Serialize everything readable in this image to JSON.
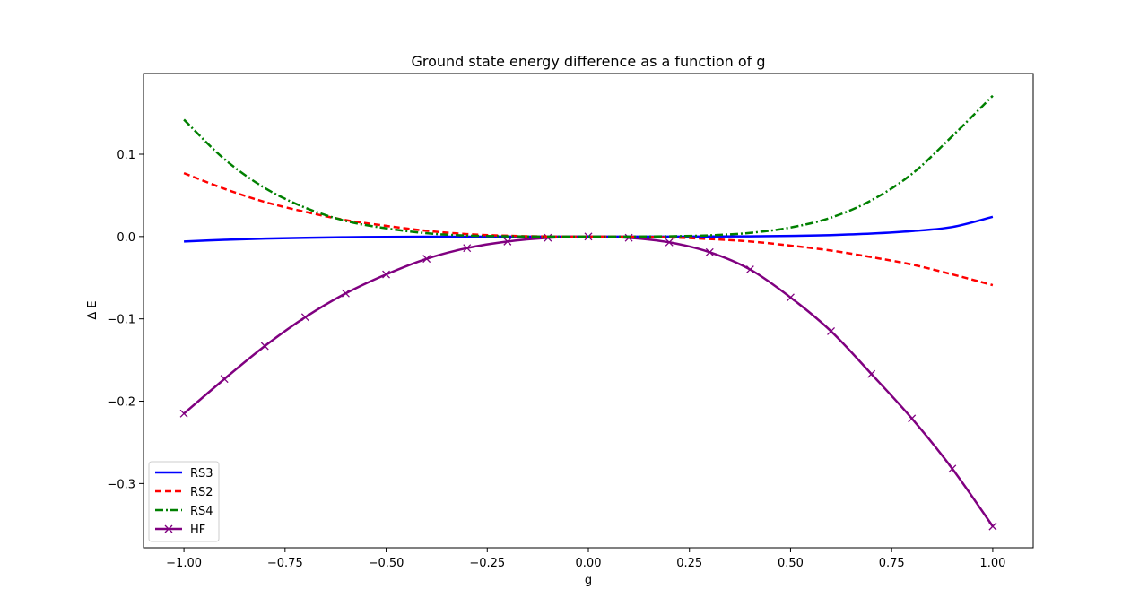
{
  "chart_data": {
    "type": "line",
    "title": "Ground state energy difference as a function of g",
    "xlabel": "g",
    "ylabel": "Δ E",
    "xlim": [
      -1.1,
      1.1
    ],
    "ylim": [
      -0.378,
      0.198
    ],
    "xticks": [
      -1.0,
      -0.75,
      -0.5,
      -0.25,
      0.0,
      0.25,
      0.5,
      0.75,
      1.0
    ],
    "xtick_labels": [
      "−1.00",
      "−0.75",
      "−0.50",
      "−0.25",
      "0.00",
      "0.25",
      "0.50",
      "0.75",
      "1.00"
    ],
    "yticks": [
      0.1,
      0.0,
      -0.1,
      -0.2,
      -0.3
    ],
    "ytick_labels": [
      "0.1",
      "0.0",
      "−0.1",
      "−0.2",
      "−0.3"
    ],
    "grid": false,
    "legend_position": "lower-left",
    "x": [
      -1.0,
      -0.9,
      -0.8,
      -0.7,
      -0.6,
      -0.5,
      -0.4,
      -0.3,
      -0.2,
      -0.1,
      0.0,
      0.1,
      0.2,
      0.3,
      0.4,
      0.5,
      0.6,
      0.7,
      0.8,
      0.9,
      1.0
    ],
    "series": [
      {
        "name": "RS3",
        "color": "#0000ff",
        "style": "solid",
        "marker": "none",
        "values": [
          -0.006,
          -0.004,
          -0.0025,
          -0.0015,
          -0.0008,
          -0.0004,
          -0.0002,
          -0.0001,
          0.0,
          0.0,
          0.0,
          0.0,
          0.0,
          0.0001,
          0.0003,
          0.0008,
          0.0018,
          0.0036,
          0.0066,
          0.0116,
          0.024
        ]
      },
      {
        "name": "RS2",
        "color": "#ff0000",
        "style": "dashed",
        "marker": "none",
        "values": [
          0.077,
          0.058,
          0.042,
          0.03,
          0.02,
          0.013,
          0.007,
          0.003,
          0.001,
          0.0001,
          0.0,
          -0.0002,
          -0.001,
          -0.003,
          -0.006,
          -0.011,
          -0.017,
          -0.025,
          -0.034,
          -0.046,
          -0.059
        ]
      },
      {
        "name": "RS4",
        "color": "#008000",
        "style": "dashdot",
        "marker": "none",
        "values": [
          0.142,
          0.094,
          0.059,
          0.035,
          0.019,
          0.01,
          0.004,
          0.0012,
          0.0003,
          0.0,
          0.0,
          0.0,
          0.0003,
          0.0015,
          0.0045,
          0.011,
          0.023,
          0.044,
          0.076,
          0.122,
          0.171
        ]
      },
      {
        "name": "HF",
        "color": "#800080",
        "style": "solid",
        "marker": "x",
        "values": [
          -0.215,
          -0.173,
          -0.133,
          -0.098,
          -0.069,
          -0.046,
          -0.027,
          -0.014,
          -0.006,
          -0.0015,
          0.0,
          -0.0015,
          -0.007,
          -0.019,
          -0.04,
          -0.074,
          -0.115,
          -0.167,
          -0.221,
          -0.282,
          -0.352
        ]
      }
    ]
  }
}
